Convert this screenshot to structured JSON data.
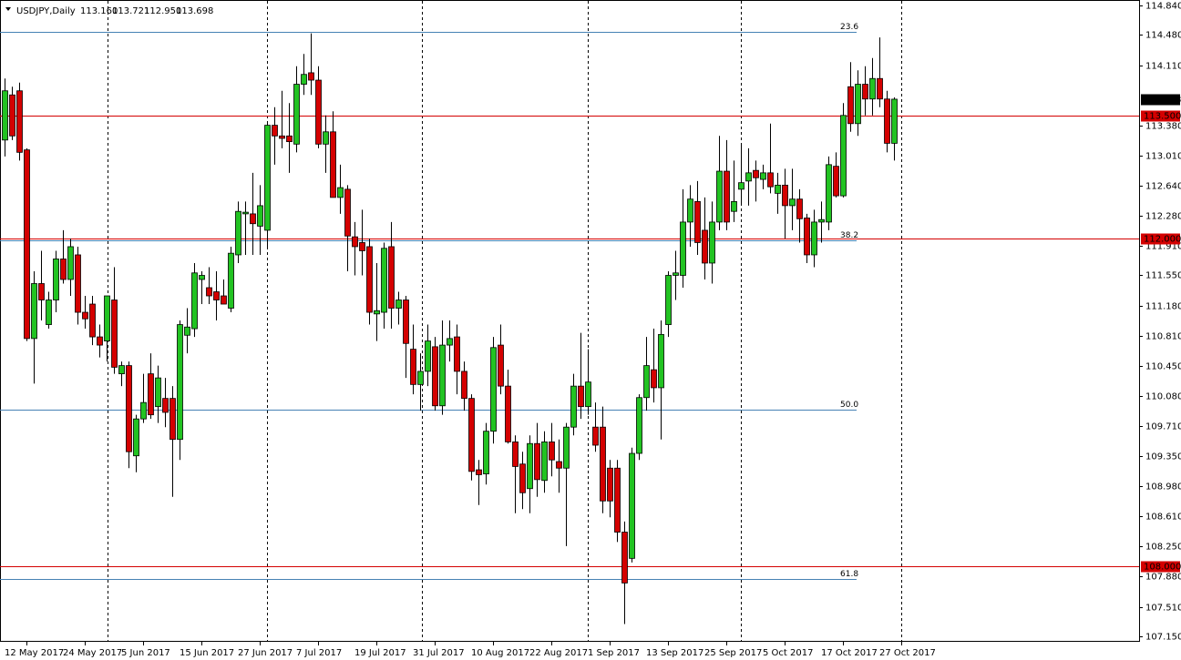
{
  "chart_data": {
    "type": "candlestick",
    "title": "USDJPY,Daily",
    "header_values": [
      "113.160",
      "113.721",
      "112.950",
      "113.698"
    ],
    "up_color": "#22c322",
    "down_color": "#d40000",
    "ylim": [
      107.083,
      114.907
    ],
    "yticks": [
      {
        "value": 114.84,
        "label": "114.840"
      },
      {
        "value": 114.48,
        "label": "114.480"
      },
      {
        "value": 114.11,
        "label": "114.110"
      },
      {
        "value": 113.38,
        "label": "113.380"
      },
      {
        "value": 113.01,
        "label": "113.010"
      },
      {
        "value": 112.64,
        "label": "112.640"
      },
      {
        "value": 112.28,
        "label": "112.280"
      },
      {
        "value": 111.91,
        "label": "111.910"
      },
      {
        "value": 111.55,
        "label": "111.550"
      },
      {
        "value": 111.18,
        "label": "111.180"
      },
      {
        "value": 110.81,
        "label": "110.810"
      },
      {
        "value": 110.45,
        "label": "110.450"
      },
      {
        "value": 110.08,
        "label": "110.080"
      },
      {
        "value": 109.71,
        "label": "109.710"
      },
      {
        "value": 109.35,
        "label": "109.350"
      },
      {
        "value": 108.98,
        "label": "108.980"
      },
      {
        "value": 108.61,
        "label": "108.610"
      },
      {
        "value": 108.25,
        "label": "108.250"
      },
      {
        "value": 107.88,
        "label": "107.880"
      },
      {
        "value": 107.51,
        "label": "107.510"
      },
      {
        "value": 107.15,
        "label": "107.150"
      }
    ],
    "x_labels": [
      "12 May 2017",
      "24 May 2017",
      "5 Jun 2017",
      "15 Jun 2017",
      "27 Jun 2017",
      "7 Jul 2017",
      "19 Jul 2017",
      "31 Jul 2017",
      "10 Aug 2017",
      "22 Aug 2017",
      "1 Sep 2017",
      "13 Sep 2017",
      "25 Sep 2017",
      "5 Oct 2017",
      "17 Oct 2017",
      "27 Oct 2017"
    ],
    "levels": [
      {
        "value": 113.5,
        "label": "113.500",
        "color": "#d40000"
      },
      {
        "value": 112.0,
        "label": "112.000",
        "color": "#d40000"
      },
      {
        "value": 108.0,
        "label": "108.000",
        "color": "#d40000"
      }
    ],
    "fib_levels": [
      {
        "value": 114.52,
        "label": "23.6"
      },
      {
        "value": 111.98,
        "label": "38.2"
      },
      {
        "value": 109.91,
        "label": "50.0"
      },
      {
        "value": 107.85,
        "label": "61.8"
      }
    ],
    "fib_color": "#4682b4",
    "last_price": {
      "value": 113.698,
      "label": "113.698"
    },
    "candles": [
      [
        113.2,
        113.95,
        113.0,
        113.8
      ],
      [
        113.75,
        113.85,
        113.2,
        113.25
      ],
      [
        113.8,
        113.9,
        112.95,
        113.05
      ],
      [
        113.08,
        113.1,
        110.75,
        110.78
      ],
      [
        110.78,
        111.6,
        110.23,
        111.45
      ],
      [
        111.45,
        111.85,
        111.0,
        111.25
      ],
      [
        110.95,
        111.35,
        110.9,
        111.25
      ],
      [
        111.25,
        111.85,
        111.1,
        111.75
      ],
      [
        111.75,
        112.1,
        111.45,
        111.5
      ],
      [
        111.5,
        112.0,
        111.3,
        111.9
      ],
      [
        111.8,
        111.9,
        110.95,
        111.1
      ],
      [
        111.1,
        111.3,
        110.9,
        111.02
      ],
      [
        111.2,
        111.3,
        110.7,
        110.8
      ],
      [
        110.8,
        110.95,
        110.55,
        110.7
      ],
      [
        110.75,
        111.3,
        110.5,
        111.3
      ],
      [
        111.25,
        111.65,
        110.35,
        110.43
      ],
      [
        110.35,
        110.5,
        110.2,
        110.45
      ],
      [
        110.45,
        110.5,
        109.2,
        109.4
      ],
      [
        109.35,
        109.85,
        109.15,
        109.8
      ],
      [
        109.8,
        110.35,
        109.75,
        110.0
      ],
      [
        110.35,
        110.6,
        109.8,
        109.85
      ],
      [
        109.95,
        110.45,
        109.75,
        110.3
      ],
      [
        110.05,
        110.3,
        109.7,
        109.88
      ],
      [
        110.05,
        110.2,
        108.85,
        109.55
      ],
      [
        109.55,
        111.0,
        109.3,
        110.95
      ],
      [
        110.82,
        111.15,
        110.6,
        110.92
      ],
      [
        110.9,
        111.7,
        110.8,
        111.58
      ],
      [
        111.5,
        111.6,
        111.2,
        111.55
      ],
      [
        111.4,
        111.65,
        111.2,
        111.3
      ],
      [
        111.35,
        111.6,
        111.0,
        111.25
      ],
      [
        111.3,
        111.5,
        111.2,
        111.2
      ],
      [
        111.15,
        111.9,
        111.1,
        111.82
      ],
      [
        111.8,
        112.45,
        111.7,
        112.33
      ],
      [
        112.3,
        112.45,
        111.8,
        112.32
      ],
      [
        112.3,
        112.8,
        111.8,
        112.18
      ],
      [
        112.15,
        112.65,
        111.8,
        112.4
      ],
      [
        112.1,
        113.4,
        111.9,
        113.38
      ],
      [
        113.38,
        113.6,
        112.9,
        113.25
      ],
      [
        113.25,
        113.8,
        113.1,
        113.22
      ],
      [
        113.25,
        113.65,
        112.8,
        113.18
      ],
      [
        113.15,
        114.1,
        113.05,
        113.88
      ],
      [
        113.88,
        114.25,
        113.75,
        114.0
      ],
      [
        114.02,
        114.5,
        113.75,
        113.93
      ],
      [
        113.93,
        114.1,
        113.1,
        113.15
      ],
      [
        113.15,
        113.5,
        112.8,
        113.3
      ],
      [
        113.3,
        113.55,
        112.5,
        112.5
      ],
      [
        112.5,
        112.9,
        112.3,
        112.62
      ],
      [
        112.6,
        112.65,
        111.6,
        112.03
      ],
      [
        112.02,
        112.2,
        111.55,
        111.9
      ],
      [
        111.95,
        112.35,
        111.55,
        111.85
      ],
      [
        111.9,
        112.0,
        110.95,
        111.1
      ],
      [
        111.08,
        111.7,
        110.75,
        111.12
      ],
      [
        111.1,
        111.95,
        110.9,
        111.88
      ],
      [
        111.9,
        112.2,
        110.9,
        111.15
      ],
      [
        111.15,
        111.35,
        110.95,
        111.25
      ],
      [
        111.25,
        111.3,
        110.3,
        110.72
      ],
      [
        110.65,
        110.95,
        110.1,
        110.22
      ],
      [
        110.22,
        110.6,
        109.9,
        110.38
      ],
      [
        110.38,
        110.95,
        110.2,
        110.75
      ],
      [
        110.68,
        110.8,
        109.9,
        109.96
      ],
      [
        109.96,
        111.0,
        109.85,
        110.7
      ],
      [
        110.7,
        111.0,
        110.5,
        110.78
      ],
      [
        110.8,
        110.95,
        110.1,
        110.38
      ],
      [
        110.38,
        110.5,
        109.9,
        110.05
      ],
      [
        110.05,
        110.1,
        109.05,
        109.16
      ],
      [
        109.18,
        109.3,
        108.75,
        109.12
      ],
      [
        109.13,
        109.75,
        109.0,
        109.65
      ],
      [
        109.65,
        110.8,
        109.5,
        110.67
      ],
      [
        110.7,
        110.95,
        110.1,
        110.2
      ],
      [
        110.2,
        110.4,
        109.5,
        109.52
      ],
      [
        109.52,
        109.6,
        108.65,
        109.22
      ],
      [
        109.25,
        109.4,
        108.7,
        108.9
      ],
      [
        108.95,
        109.6,
        108.65,
        109.5
      ],
      [
        109.5,
        109.75,
        108.85,
        109.06
      ],
      [
        109.05,
        109.65,
        108.9,
        109.52
      ],
      [
        109.52,
        109.75,
        109.1,
        109.3
      ],
      [
        109.28,
        109.55,
        108.9,
        109.2
      ],
      [
        109.2,
        109.75,
        108.25,
        109.7
      ],
      [
        109.7,
        110.35,
        109.6,
        110.2
      ],
      [
        110.2,
        110.85,
        109.8,
        109.95
      ],
      [
        109.95,
        110.65,
        109.85,
        110.25
      ],
      [
        109.7,
        110.0,
        109.4,
        109.48
      ],
      [
        109.7,
        109.95,
        108.65,
        108.8
      ],
      [
        109.2,
        109.3,
        108.6,
        108.8
      ],
      [
        109.2,
        109.3,
        108.3,
        108.42
      ],
      [
        108.42,
        108.55,
        107.3,
        107.8
      ],
      [
        108.1,
        109.45,
        108.05,
        109.38
      ],
      [
        109.38,
        110.1,
        109.3,
        110.06
      ],
      [
        110.06,
        110.8,
        109.9,
        110.45
      ],
      [
        110.4,
        110.9,
        110.0,
        110.18
      ],
      [
        110.18,
        111.0,
        109.55,
        110.83
      ],
      [
        110.95,
        111.6,
        110.8,
        111.55
      ],
      [
        111.55,
        111.85,
        111.25,
        111.58
      ],
      [
        111.55,
        112.6,
        111.4,
        112.2
      ],
      [
        112.2,
        112.65,
        111.9,
        112.48
      ],
      [
        112.45,
        112.7,
        111.8,
        111.95
      ],
      [
        112.1,
        112.5,
        111.5,
        111.7
      ],
      [
        111.7,
        112.45,
        111.45,
        112.2
      ],
      [
        112.2,
        113.25,
        112.1,
        112.82
      ],
      [
        112.82,
        113.2,
        112.1,
        112.2
      ],
      [
        112.33,
        112.95,
        112.2,
        112.45
      ],
      [
        112.6,
        113.15,
        112.4,
        112.68
      ],
      [
        112.7,
        113.1,
        112.4,
        112.8
      ],
      [
        112.83,
        112.95,
        112.45,
        112.74
      ],
      [
        112.72,
        112.9,
        112.6,
        112.8
      ],
      [
        112.8,
        113.4,
        112.55,
        112.63
      ],
      [
        112.55,
        112.8,
        112.3,
        112.65
      ],
      [
        112.65,
        112.85,
        112.0,
        112.4
      ],
      [
        112.4,
        112.85,
        112.1,
        112.48
      ],
      [
        112.48,
        112.6,
        111.95,
        112.24
      ],
      [
        112.25,
        112.3,
        111.7,
        111.8
      ],
      [
        111.8,
        112.35,
        111.65,
        112.2
      ],
      [
        112.2,
        112.45,
        111.95,
        112.23
      ],
      [
        112.2,
        113.0,
        112.1,
        112.9
      ],
      [
        112.88,
        113.05,
        112.5,
        112.52
      ],
      [
        112.52,
        113.65,
        112.5,
        113.5
      ],
      [
        113.85,
        114.15,
        113.3,
        113.4
      ],
      [
        113.4,
        114.05,
        113.25,
        113.88
      ],
      [
        113.88,
        114.1,
        113.5,
        113.7
      ],
      [
        113.7,
        114.2,
        113.5,
        113.95
      ],
      [
        113.95,
        114.45,
        113.6,
        113.7
      ],
      [
        113.7,
        113.8,
        113.05,
        113.16
      ],
      [
        113.16,
        113.72,
        112.95,
        113.698
      ]
    ]
  }
}
